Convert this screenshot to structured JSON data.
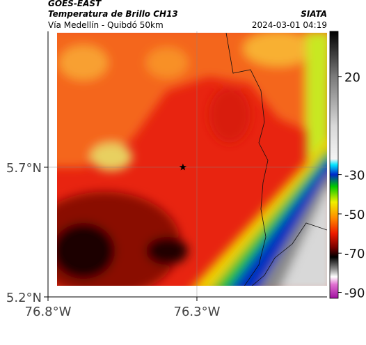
{
  "header": {
    "title": "GOES-EAST",
    "subtitle": "Temperatura de Brillo CH13",
    "route": "Vía Medellín - Quibdó 50km",
    "source": "SIATA",
    "timestamp": "2024-03-01 04:19"
  },
  "map": {
    "latlim": [
      5.2,
      6.224
    ],
    "lonlim": [
      -76.8,
      -75.863
    ],
    "latticks": [
      {
        "value": 5.7,
        "label": "5.7°N"
      },
      {
        "value": 5.2,
        "label": "5.2°N"
      }
    ],
    "lonticks": [
      {
        "value": -76.8,
        "label": "76.8°W"
      },
      {
        "value": -76.3,
        "label": "76.3°W"
      }
    ],
    "grid": true,
    "marker": {
      "lon": -76.347,
      "lat": 5.7
    }
  },
  "colorbar": {
    "lim": [
      43,
      -93
    ],
    "ticks": [
      20,
      -30,
      -50,
      -70,
      -90
    ],
    "stops": [
      {
        "value": 43,
        "color": "#000000"
      },
      {
        "value": 20,
        "color": "#7a7a7a"
      },
      {
        "value": -5,
        "color": "#d8d8d8"
      },
      {
        "value": -22,
        "color": "#f4f4f4"
      },
      {
        "value": -25,
        "color": "#00e5ff"
      },
      {
        "value": -30,
        "color": "#0026c8"
      },
      {
        "value": -36,
        "color": "#00c800"
      },
      {
        "value": -44,
        "color": "#f0f000"
      },
      {
        "value": -52,
        "color": "#ff8c00"
      },
      {
        "value": -60,
        "color": "#ee1a00"
      },
      {
        "value": -67,
        "color": "#7a0000"
      },
      {
        "value": -72,
        "color": "#000000"
      },
      {
        "value": -78,
        "color": "#8a8a8a"
      },
      {
        "value": -82,
        "color": "#ffffff"
      },
      {
        "value": -86,
        "color": "#e070d0"
      },
      {
        "value": -93,
        "color": "#a010a0"
      }
    ]
  }
}
